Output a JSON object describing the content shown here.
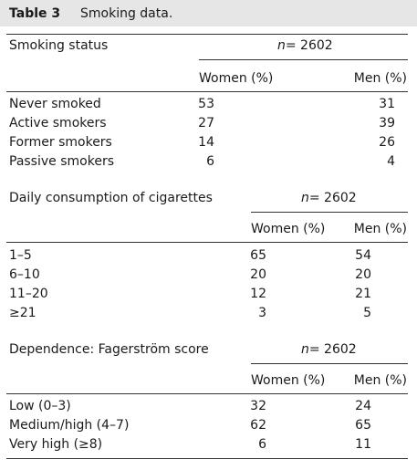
{
  "table": {
    "number": "Table 3",
    "caption": "Smoking data."
  },
  "sections": [
    {
      "heading": "Smoking status",
      "n_label": "n",
      "n_value": "= 2602",
      "col_women": "Women (%)",
      "col_men": "Men (%)",
      "rows": [
        {
          "label": "Never smoked",
          "women": "53",
          "men": "31"
        },
        {
          "label": "Active smokers",
          "women": "27",
          "men": "39"
        },
        {
          "label": "Former smokers",
          "women": "14",
          "men": "26"
        },
        {
          "label": "Passive smokers",
          "women": "6",
          "men": "4"
        }
      ]
    },
    {
      "heading": "Daily consumption of cigarettes",
      "n_label": "n",
      "n_value": "= 2602",
      "col_women": "Women (%)",
      "col_men": "Men (%)",
      "rows": [
        {
          "label": "1–5",
          "women": "65",
          "men": "54"
        },
        {
          "label": "6–10",
          "women": "20",
          "men": "20"
        },
        {
          "label": "11–20",
          "women": "12",
          "men": "21"
        },
        {
          "label": "≥21",
          "women": "3",
          "men": "5"
        }
      ]
    },
    {
      "heading": "Dependence: Fagerström score",
      "n_label": "n",
      "n_value": "= 2602",
      "col_women": "Women (%)",
      "col_men": "Men (%)",
      "rows": [
        {
          "label": "Low (0–3)",
          "women": "32",
          "men": "24"
        },
        {
          "label": "Medium/high (4–7)",
          "women": "62",
          "men": "65"
        },
        {
          "label": "Very high (≥8)",
          "women": "6",
          "men": "11"
        }
      ]
    }
  ]
}
